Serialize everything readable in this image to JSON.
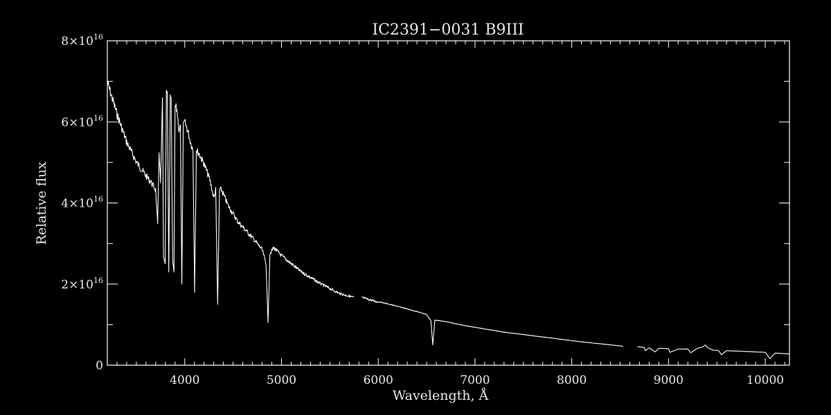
{
  "chart_data": {
    "type": "line",
    "title": "IC2391−0031   B9III",
    "xlabel": "Wavelength, Å",
    "ylabel": "Relative flux",
    "xlim": [
      3200,
      10250
    ],
    "ylim": [
      0,
      8e+16
    ],
    "x_ticks": [
      {
        "value": 4000,
        "label": "4000"
      },
      {
        "value": 5000,
        "label": "5000"
      },
      {
        "value": 6000,
        "label": "6000"
      },
      {
        "value": 7000,
        "label": "7000"
      },
      {
        "value": 8000,
        "label": "8000"
      },
      {
        "value": 9000,
        "label": "9000"
      },
      {
        "value": 10000,
        "label": "10000"
      }
    ],
    "y_ticks": [
      {
        "value": 0,
        "mantissa": "0",
        "exponent": ""
      },
      {
        "value": 2e+16,
        "mantissa": "2×10",
        "exponent": "16"
      },
      {
        "value": 4e+16,
        "mantissa": "4×10",
        "exponent": "16"
      },
      {
        "value": 6e+16,
        "mantissa": "6×10",
        "exponent": "16"
      },
      {
        "value": 8e+16,
        "mantissa": "8×10",
        "exponent": "16"
      }
    ],
    "grid": false,
    "colors": {
      "background": "#000000",
      "foreground": "#ffffff"
    },
    "series": [
      {
        "x": [
          3200,
          3300,
          3400,
          3500,
          3600,
          3650,
          3700,
          3720,
          3735,
          3750,
          3770,
          3780,
          3798,
          3810,
          3820,
          3835,
          3850,
          3860,
          3875,
          3889,
          3900,
          3920,
          3940,
          3955,
          3970,
          3985,
          4000,
          4030,
          4060,
          4085,
          4102,
          4120,
          4150,
          4200,
          4260,
          4300,
          4320,
          4340,
          4360,
          4380,
          4450,
          4550,
          4700,
          4800,
          4840,
          4861,
          4880,
          4920,
          5000,
          5200,
          5400,
          5600,
          5750
        ],
        "y": [
          7.1e+16,
          6.3e+16,
          5.6e+16,
          5.1e+16,
          4.75e+16,
          4.6e+16,
          4.4e+16,
          3.5e+16,
          5.4e+16,
          4.5e+16,
          6.6e+16,
          2.7e+16,
          2.5e+16,
          6.8e+16,
          6.8e+16,
          2.3e+16,
          6.7e+16,
          6.6e+16,
          2.6e+16,
          2.3e+16,
          6.5e+16,
          6.4e+16,
          5.9e+16,
          6e+16,
          2e+16,
          6e+16,
          6.1e+16,
          5.9e+16,
          5.6e+16,
          5.4e+16,
          1.8e+16,
          5.4e+16,
          5.3e+16,
          5.05e+16,
          4.65e+16,
          4.2e+16,
          4.4e+16,
          1.5e+16,
          4.4e+16,
          4.4e+16,
          4e+16,
          3.6e+16,
          3.2e+16,
          2.9e+16,
          2.55e+16,
          1.05e+16,
          2.8e+16,
          2.95e+16,
          2.75e+16,
          2.35e+16,
          2.05e+16,
          1.8e+16,
          1.7e+16
        ]
      },
      {
        "x": [
          5830,
          6000,
          6200,
          6400,
          6500,
          6545,
          6563,
          6585,
          6700,
          6900,
          7100,
          7300,
          7500,
          7700,
          7900,
          8100,
          8300,
          8530
        ],
        "y": [
          1.7e+16,
          1.58e+16,
          1.46e+16,
          1.33e+16,
          1.26e+16,
          1.1e+16,
          5000000000000000.0,
          1.12e+16,
          1.08e+16,
          9800000000000000.0,
          9000000000000000.0,
          8200000000000000.0,
          7600000000000000.0,
          7000000000000000.0,
          6400000000000000.0,
          5800000000000000.0,
          5300000000000000.0,
          4700000000000000.0
        ]
      },
      {
        "x": [
          8680,
          8750,
          8760,
          8800,
          8862,
          8900,
          9000,
          9015,
          9100,
          9200,
          9229,
          9300,
          9350,
          9380,
          9400,
          9450,
          9520,
          9546,
          9600,
          9800,
          10000,
          10049,
          10100,
          10250
        ],
        "y": [
          4600000000000000.0,
          4400000000000000.0,
          3600000000000000.0,
          4300000000000000.0,
          3300000000000000.0,
          4200000000000000.0,
          4100000000000000.0,
          3200000000000000.0,
          4000000000000000.0,
          4000000000000000.0,
          3100000000000000.0,
          4200000000000000.0,
          4500000000000000.0,
          5000000000000000.0,
          4400000000000000.0,
          3800000000000000.0,
          3600000000000000.0,
          2600000000000000.0,
          3600000000000000.0,
          3400000000000000.0,
          3200000000000000.0,
          1600000000000000.0,
          3000000000000000.0,
          2800000000000000.0
        ]
      }
    ],
    "absorption_lines": [
      3750,
      3770,
      3798,
      3835,
      3889,
      3970,
      4102,
      4340,
      4861,
      6563
    ]
  }
}
